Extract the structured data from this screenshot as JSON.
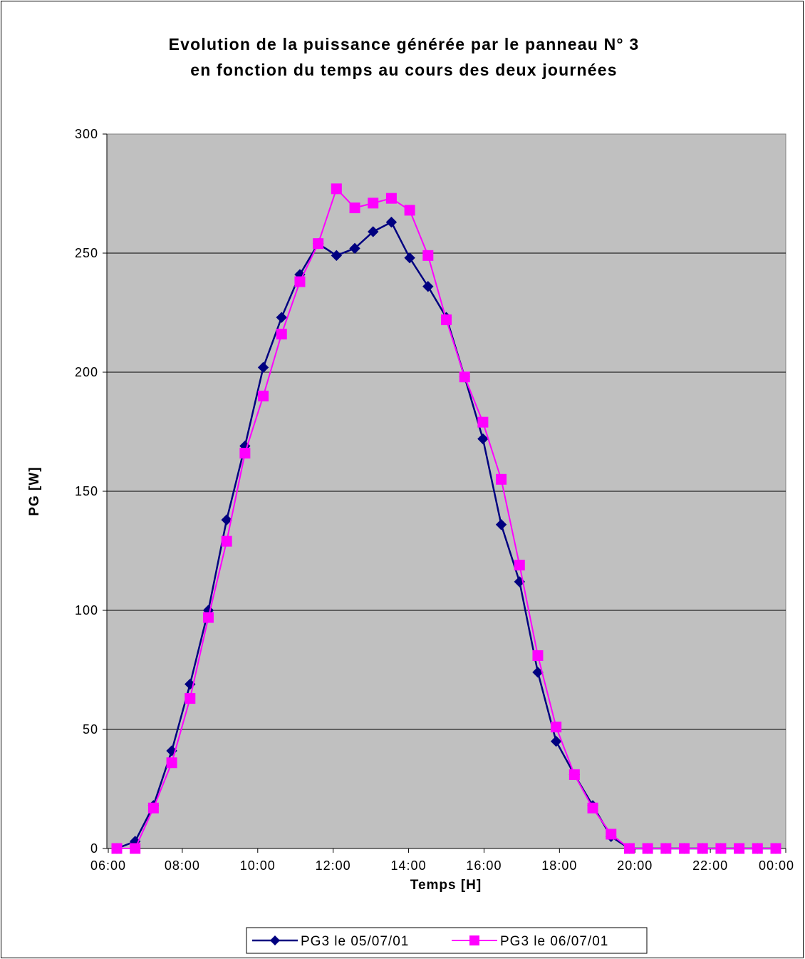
{
  "chart_data": {
    "type": "line",
    "title": "Evolution de la puissance générée par le panneau N° 3",
    "subtitle": "en fonction du temps au cours des deux journées",
    "xlabel": "Temps [H]",
    "ylabel": "PG [W]",
    "ylim": [
      0,
      300
    ],
    "yticks": [
      0,
      50,
      100,
      150,
      200,
      250,
      300
    ],
    "xticks": [
      "06:00",
      "08:00",
      "10:00",
      "12:00",
      "14:00",
      "16:00",
      "18:00",
      "20:00",
      "22:00",
      "00:00"
    ],
    "grid": "horizontal",
    "background": "#c0c0c0",
    "legend_position": "bottom",
    "x": [
      "06:00",
      "06:30",
      "07:00",
      "07:30",
      "08:00",
      "08:30",
      "09:00",
      "09:30",
      "10:00",
      "10:30",
      "11:00",
      "11:30",
      "12:00",
      "12:30",
      "13:00",
      "13:30",
      "14:00",
      "14:30",
      "15:00",
      "15:30",
      "16:00",
      "16:30",
      "17:00",
      "17:30",
      "18:00",
      "18:30",
      "19:00",
      "19:30",
      "20:00",
      "20:30",
      "21:00",
      "21:30",
      "22:00",
      "22:30",
      "23:00",
      "23:30",
      "00:00"
    ],
    "series": [
      {
        "name": "PG3 le 05/07/01",
        "color": "#000080",
        "marker": "diamond",
        "values": [
          0,
          3,
          18,
          41,
          69,
          100,
          138,
          169,
          202,
          223,
          241,
          254,
          249,
          252,
          259,
          263,
          248,
          236,
          223,
          198,
          172,
          136,
          112,
          74,
          45,
          31,
          18,
          5,
          0,
          0,
          0,
          0,
          0,
          0,
          0,
          0,
          0
        ]
      },
      {
        "name": "PG3 le 06/07/01",
        "color": "#ff00ff",
        "marker": "square",
        "values": [
          0,
          0,
          17,
          36,
          63,
          97,
          129,
          166,
          190,
          216,
          238,
          254,
          277,
          269,
          271,
          273,
          268,
          249,
          222,
          198,
          179,
          155,
          119,
          81,
          51,
          31,
          17,
          6,
          0,
          0,
          0,
          0,
          0,
          0,
          0,
          0,
          0
        ]
      }
    ]
  }
}
